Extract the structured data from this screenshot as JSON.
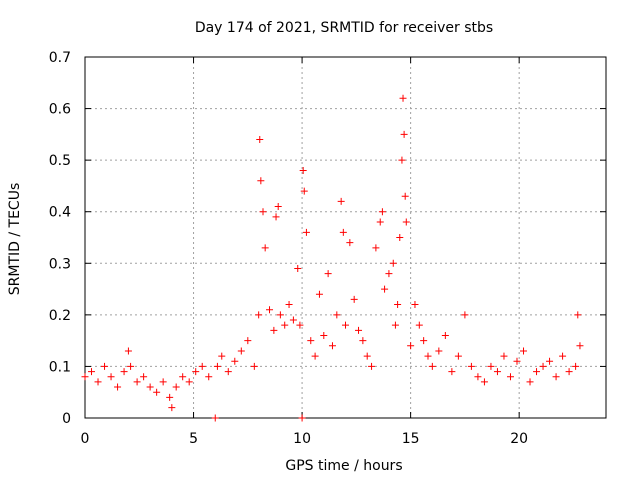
{
  "chart_data": {
    "type": "scatter",
    "title": "Day 174 of 2021, SRMTID for receiver stbs",
    "xlabel": "GPS time / hours",
    "ylabel": "SRMTID / TECUs",
    "xlim": [
      0,
      24
    ],
    "ylim": [
      0,
      0.7
    ],
    "x_ticks": [
      0,
      5,
      10,
      15,
      20
    ],
    "x_tick_labels": [
      "0",
      "5",
      "10",
      "15",
      "20"
    ],
    "y_ticks": [
      0,
      0.1,
      0.2,
      0.3,
      0.4,
      0.5,
      0.6,
      0.7
    ],
    "y_tick_labels": [
      "0",
      "0.1",
      "0.2",
      "0.3",
      "0.4",
      "0.5",
      "0.6",
      "0.7"
    ],
    "grid": true,
    "marker": "+",
    "color": "#ff0000",
    "series": [
      {
        "name": "SRMTID",
        "x": [
          0.0,
          0.3,
          0.6,
          0.9,
          1.2,
          1.5,
          1.8,
          2.0,
          2.1,
          2.4,
          2.7,
          3.0,
          3.3,
          3.6,
          3.9,
          4.0,
          4.2,
          4.5,
          4.8,
          5.1,
          5.4,
          5.7,
          6.0,
          6.1,
          6.3,
          6.6,
          6.9,
          7.2,
          7.5,
          7.8,
          8.0,
          8.05,
          8.1,
          8.2,
          8.3,
          8.5,
          8.7,
          8.8,
          8.9,
          9.0,
          9.2,
          9.4,
          9.6,
          9.8,
          9.9,
          10.0,
          10.05,
          10.1,
          10.2,
          10.4,
          10.6,
          10.8,
          11.0,
          11.2,
          11.4,
          11.6,
          11.8,
          11.9,
          12.0,
          12.2,
          12.4,
          12.6,
          12.8,
          13.0,
          13.2,
          13.4,
          13.6,
          13.7,
          13.8,
          14.0,
          14.2,
          14.3,
          14.4,
          14.5,
          14.6,
          14.65,
          14.7,
          14.75,
          14.8,
          15.0,
          15.2,
          15.4,
          15.6,
          15.8,
          16.0,
          16.3,
          16.6,
          16.9,
          17.2,
          17.5,
          17.8,
          18.1,
          18.4,
          18.7,
          19.0,
          19.3,
          19.6,
          19.9,
          20.2,
          20.5,
          20.8,
          21.1,
          21.4,
          21.7,
          22.0,
          22.3,
          22.6,
          22.7,
          22.8
        ],
        "y": [
          0.08,
          0.09,
          0.07,
          0.1,
          0.08,
          0.06,
          0.09,
          0.13,
          0.1,
          0.07,
          0.08,
          0.06,
          0.05,
          0.07,
          0.04,
          0.02,
          0.06,
          0.08,
          0.07,
          0.09,
          0.1,
          0.08,
          0.0,
          0.1,
          0.12,
          0.09,
          0.11,
          0.13,
          0.15,
          0.1,
          0.2,
          0.54,
          0.46,
          0.4,
          0.33,
          0.21,
          0.17,
          0.39,
          0.41,
          0.2,
          0.18,
          0.22,
          0.19,
          0.29,
          0.18,
          0.0,
          0.48,
          0.44,
          0.36,
          0.15,
          0.12,
          0.24,
          0.16,
          0.28,
          0.14,
          0.2,
          0.42,
          0.36,
          0.18,
          0.34,
          0.23,
          0.17,
          0.15,
          0.12,
          0.1,
          0.33,
          0.38,
          0.4,
          0.25,
          0.28,
          0.3,
          0.18,
          0.22,
          0.35,
          0.5,
          0.62,
          0.55,
          0.43,
          0.38,
          0.14,
          0.22,
          0.18,
          0.15,
          0.12,
          0.1,
          0.13,
          0.16,
          0.09,
          0.12,
          0.2,
          0.1,
          0.08,
          0.07,
          0.1,
          0.09,
          0.12,
          0.08,
          0.11,
          0.13,
          0.07,
          0.09,
          0.1,
          0.11,
          0.08,
          0.12,
          0.09,
          0.1,
          0.2,
          0.14
        ]
      }
    ]
  }
}
